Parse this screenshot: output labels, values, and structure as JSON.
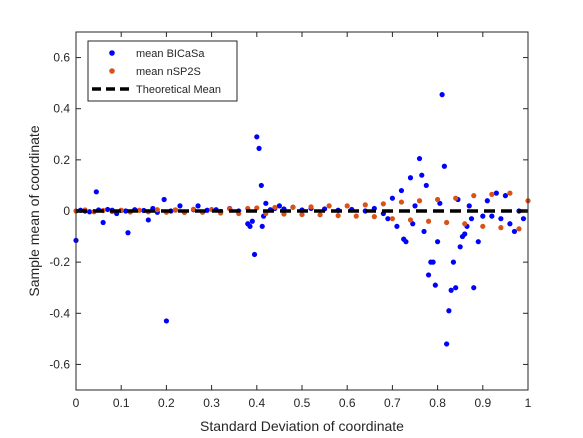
{
  "chart_data": {
    "type": "scatter",
    "xlabel": "Standard Deviation of coordinate",
    "ylabel": "Sample mean of coordinate",
    "xlim": [
      0,
      1
    ],
    "ylim": [
      -0.7,
      0.7
    ],
    "x_ticks": [
      0,
      0.1,
      0.2,
      0.3,
      0.4,
      0.5,
      0.6,
      0.7,
      0.8,
      0.9,
      1
    ],
    "x_tick_labels": [
      "0",
      "0.1",
      "0.2",
      "0.3",
      "0.4",
      "0.5",
      "0.6",
      "0.7",
      "0.8",
      "0.9",
      "1"
    ],
    "y_ticks": [
      -0.6,
      -0.4,
      -0.2,
      0,
      0.2,
      0.4,
      0.6
    ],
    "y_tick_labels": [
      "-0.6",
      "-0.4",
      "-0.2",
      "0",
      "0.2",
      "0.4",
      "0.6"
    ],
    "grid": false,
    "legend_position": "top-left",
    "series": [
      {
        "name": "mean BICaSa",
        "color": "#0000ff",
        "marker": "dot",
        "points": [
          [
            0.0,
            -0.115
          ],
          [
            0.01,
            0.003
          ],
          [
            0.02,
            0.0
          ],
          [
            0.03,
            -0.003
          ],
          [
            0.045,
            0.075
          ],
          [
            0.05,
            0.004
          ],
          [
            0.06,
            -0.045
          ],
          [
            0.07,
            0.006
          ],
          [
            0.08,
            0.003
          ],
          [
            0.09,
            -0.01
          ],
          [
            0.1,
            0.002
          ],
          [
            0.11,
            0.0
          ],
          [
            0.115,
            -0.085
          ],
          [
            0.13,
            0.005
          ],
          [
            0.15,
            0.002
          ],
          [
            0.16,
            -0.035
          ],
          [
            0.17,
            0.01
          ],
          [
            0.18,
            -0.005
          ],
          [
            0.195,
            0.045
          ],
          [
            0.2,
            -0.43
          ],
          [
            0.21,
            0.0
          ],
          [
            0.22,
            0.004
          ],
          [
            0.23,
            0.02
          ],
          [
            0.24,
            -0.005
          ],
          [
            0.26,
            0.005
          ],
          [
            0.27,
            0.02
          ],
          [
            0.28,
            -0.004
          ],
          [
            0.29,
            0.003
          ],
          [
            0.31,
            0.005
          ],
          [
            0.32,
            -0.002
          ],
          [
            0.34,
            0.01
          ],
          [
            0.36,
            0.0
          ],
          [
            0.38,
            -0.05
          ],
          [
            0.385,
            -0.06
          ],
          [
            0.39,
            -0.04
          ],
          [
            0.395,
            -0.17
          ],
          [
            0.4,
            0.29
          ],
          [
            0.405,
            0.245
          ],
          [
            0.41,
            0.1
          ],
          [
            0.412,
            -0.06
          ],
          [
            0.415,
            -0.02
          ],
          [
            0.42,
            0.03
          ],
          [
            0.43,
            0.005
          ],
          [
            0.44,
            0.01
          ],
          [
            0.45,
            0.02
          ],
          [
            0.46,
            0.008
          ],
          [
            0.48,
            0.015
          ],
          [
            0.5,
            0.004
          ],
          [
            0.52,
            0.01
          ],
          [
            0.55,
            0.008
          ],
          [
            0.58,
            0.003
          ],
          [
            0.61,
            0.006
          ],
          [
            0.64,
            0.0
          ],
          [
            0.66,
            0.01
          ],
          [
            0.68,
            -0.01
          ],
          [
            0.69,
            -0.03
          ],
          [
            0.7,
            0.05
          ],
          [
            0.71,
            -0.06
          ],
          [
            0.72,
            0.08
          ],
          [
            0.725,
            -0.11
          ],
          [
            0.73,
            -0.12
          ],
          [
            0.74,
            0.13
          ],
          [
            0.745,
            -0.05
          ],
          [
            0.75,
            0.02
          ],
          [
            0.76,
            0.205
          ],
          [
            0.765,
            0.14
          ],
          [
            0.77,
            -0.08
          ],
          [
            0.775,
            0.1
          ],
          [
            0.78,
            -0.25
          ],
          [
            0.785,
            -0.2
          ],
          [
            0.79,
            -0.2
          ],
          [
            0.795,
            -0.29
          ],
          [
            0.8,
            -0.12
          ],
          [
            0.805,
            0.03
          ],
          [
            0.81,
            0.455
          ],
          [
            0.815,
            0.175
          ],
          [
            0.82,
            -0.52
          ],
          [
            0.825,
            -0.39
          ],
          [
            0.83,
            -0.31
          ],
          [
            0.835,
            -0.2
          ],
          [
            0.84,
            -0.3
          ],
          [
            0.845,
            0.045
          ],
          [
            0.85,
            -0.14
          ],
          [
            0.855,
            -0.1
          ],
          [
            0.86,
            -0.09
          ],
          [
            0.865,
            -0.06
          ],
          [
            0.87,
            0.02
          ],
          [
            0.875,
            -0.03
          ],
          [
            0.88,
            -0.3
          ],
          [
            0.89,
            -0.12
          ],
          [
            0.9,
            -0.02
          ],
          [
            0.91,
            0.04
          ],
          [
            0.92,
            -0.02
          ],
          [
            0.93,
            0.07
          ],
          [
            0.94,
            -0.03
          ],
          [
            0.95,
            0.06
          ],
          [
            0.96,
            -0.05
          ],
          [
            0.97,
            -0.08
          ],
          [
            0.98,
            0.0
          ],
          [
            0.99,
            -0.03
          ]
        ]
      },
      {
        "name": "mean nSP2S",
        "color": "#d95319",
        "marker": "dot",
        "points": [
          [
            0.0,
            0.0
          ],
          [
            0.02,
            0.004
          ],
          [
            0.04,
            -0.003
          ],
          [
            0.06,
            0.002
          ],
          [
            0.08,
            -0.002
          ],
          [
            0.1,
            0.003
          ],
          [
            0.12,
            -0.004
          ],
          [
            0.14,
            0.003
          ],
          [
            0.16,
            -0.003
          ],
          [
            0.18,
            0.005
          ],
          [
            0.2,
            -0.005
          ],
          [
            0.22,
            0.004
          ],
          [
            0.24,
            -0.006
          ],
          [
            0.26,
            0.007
          ],
          [
            0.28,
            -0.005
          ],
          [
            0.3,
            0.006
          ],
          [
            0.32,
            -0.008
          ],
          [
            0.34,
            0.009
          ],
          [
            0.36,
            -0.01
          ],
          [
            0.38,
            0.01
          ],
          [
            0.4,
            0.012
          ],
          [
            0.42,
            -0.01
          ],
          [
            0.44,
            0.014
          ],
          [
            0.46,
            -0.012
          ],
          [
            0.48,
            0.015
          ],
          [
            0.5,
            -0.014
          ],
          [
            0.52,
            0.016
          ],
          [
            0.54,
            -0.015
          ],
          [
            0.56,
            0.02
          ],
          [
            0.58,
            -0.018
          ],
          [
            0.6,
            0.02
          ],
          [
            0.62,
            -0.02
          ],
          [
            0.64,
            0.024
          ],
          [
            0.66,
            -0.022
          ],
          [
            0.68,
            0.028
          ],
          [
            0.7,
            -0.03
          ],
          [
            0.72,
            0.035
          ],
          [
            0.74,
            -0.035
          ],
          [
            0.76,
            0.04
          ],
          [
            0.78,
            -0.04
          ],
          [
            0.8,
            0.045
          ],
          [
            0.82,
            -0.045
          ],
          [
            0.84,
            0.05
          ],
          [
            0.86,
            -0.05
          ],
          [
            0.88,
            0.06
          ],
          [
            0.9,
            -0.06
          ],
          [
            0.92,
            0.065
          ],
          [
            0.94,
            -0.065
          ],
          [
            0.96,
            0.07
          ],
          [
            0.98,
            -0.07
          ],
          [
            1.0,
            0.04
          ]
        ]
      },
      {
        "name": "Theoretical Mean",
        "color": "#000000",
        "marker": "dashed-line",
        "points": [
          [
            0,
            0
          ],
          [
            1,
            0
          ]
        ]
      }
    ]
  }
}
